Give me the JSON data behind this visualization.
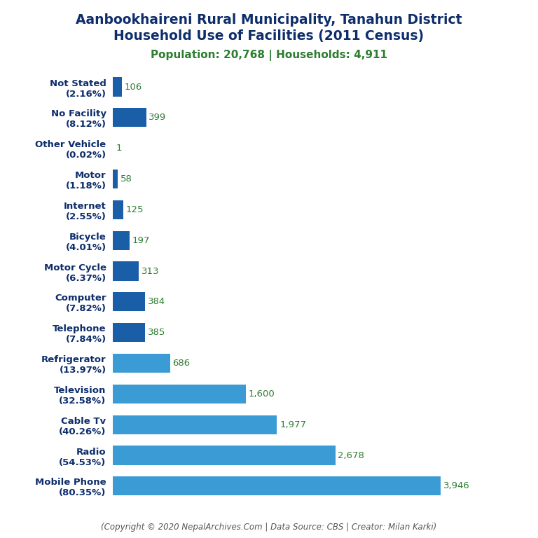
{
  "title_line1": "Aanbookhaireni Rural Municipality, Tanahun District",
  "title_line2": "Household Use of Facilities (2011 Census)",
  "subtitle": "Population: 20,768 | Households: 4,911",
  "copyright": "(Copyright © 2020 NepalArchives.Com | Data Source: CBS | Creator: Milan Karki)",
  "categories": [
    "Mobile Phone\n(80.35%)",
    "Radio\n(54.53%)",
    "Cable Tv\n(40.26%)",
    "Television\n(32.58%)",
    "Refrigerator\n(13.97%)",
    "Telephone\n(7.84%)",
    "Computer\n(7.82%)",
    "Motor Cycle\n(6.37%)",
    "Bicycle\n(4.01%)",
    "Internet\n(2.55%)",
    "Motor\n(1.18%)",
    "Other Vehicle\n(0.02%)",
    "No Facility\n(8.12%)",
    "Not Stated\n(2.16%)"
  ],
  "values": [
    3946,
    2678,
    1977,
    1600,
    686,
    385,
    384,
    313,
    197,
    125,
    58,
    1,
    399,
    106
  ],
  "value_labels": [
    "3,946",
    "2,678",
    "1,977",
    "1,600",
    "686",
    "385",
    "384",
    "313",
    "197",
    "125",
    "58",
    "1",
    "399",
    "106"
  ],
  "bar_color_light": "#3a9bd5",
  "bar_color_dark": "#1b5ea8",
  "title_color": "#0d2d6b",
  "subtitle_color": "#2e7d32",
  "value_color": "#2e7d32",
  "copyright_color": "#555555",
  "background_color": "#ffffff",
  "ylabel_color": "#0d2d6b",
  "title_fontsize": 13.5,
  "subtitle_fontsize": 11,
  "label_fontsize": 9.5,
  "value_fontsize": 9.5,
  "copyright_fontsize": 8.5,
  "dark_threshold": 500
}
